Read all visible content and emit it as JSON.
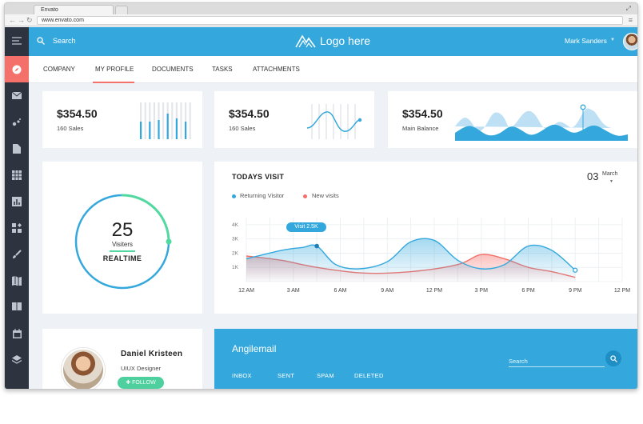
{
  "browser": {
    "tab_title": "Envato",
    "url": "www.envato.com"
  },
  "topbar": {
    "search_label": "Search",
    "logo_text": "Logo here",
    "user_name": "Mark Sanders"
  },
  "sidebar": {
    "icons": [
      "menu-icon",
      "compass-icon",
      "mail-icon",
      "dots-icon",
      "document-icon",
      "grid-icon",
      "bar-chart-icon",
      "widgets-icon",
      "brush-icon",
      "map-icon",
      "book-icon",
      "calendar-icon",
      "layers-icon"
    ],
    "active_index": 1
  },
  "tabs": [
    "COMPANY",
    "MY PROFILE",
    "DOCUMENTS",
    "TASKS",
    "ATTACHMENTS"
  ],
  "active_tab": 1,
  "stats": [
    {
      "value": "$354.50",
      "label": "160 Sales",
      "chart": "bars",
      "bars": [
        0.55,
        0.85,
        0.55,
        0.95,
        0.6,
        0.45,
        0.8,
        0.5,
        0.65,
        0.35,
        0.55,
        0.6
      ]
    },
    {
      "value": "$354.50",
      "label": "160 Sales",
      "chart": "wave"
    },
    {
      "value": "$354.50",
      "label": "Main Balance",
      "chart": "area"
    }
  ],
  "realtime": {
    "count": "25",
    "unit": "Visiters",
    "label": "REALTIME",
    "progress": 0.25
  },
  "visits": {
    "title": "TODAYS VISIT",
    "date_day": "03",
    "date_month": "March",
    "legend": [
      {
        "label": "Returning Visitor",
        "color": "#34a8dd"
      },
      {
        "label": "New visits",
        "color": "#f4706a"
      }
    ],
    "tooltip": "Visit 2.5K"
  },
  "chart_data": {
    "type": "area",
    "y_tick_labels": [
      "4K",
      "3K",
      "2K",
      "1K"
    ],
    "ylim": [
      0,
      4.5
    ],
    "categories": [
      "12 AM",
      "3 AM",
      "6 AM",
      "9 AM",
      "12 PM",
      "3 PM",
      "6 PM",
      "9 PM",
      "12 PM"
    ],
    "series": [
      {
        "name": "Returning Visitor",
        "color": "#34a8dd",
        "x": [
          0,
          0.75,
          1.2,
          1.5,
          1.9,
          2.4,
          3.0,
          3.5,
          4.0,
          4.5,
          5.0,
          5.5,
          6.0,
          6.5,
          7.0
        ],
        "y": [
          1.6,
          2.2,
          2.4,
          2.5,
          1.2,
          0.9,
          1.4,
          2.8,
          2.9,
          1.5,
          0.9,
          1.2,
          2.5,
          2.2,
          0.8
        ]
      },
      {
        "name": "New visits",
        "color": "#f4706a",
        "x": [
          0,
          0.75,
          1.5,
          2.5,
          3.5,
          4.5,
          5.0,
          5.5,
          6.0,
          6.5,
          7.0
        ],
        "y": [
          1.8,
          1.5,
          1.0,
          0.6,
          0.7,
          1.2,
          1.9,
          1.6,
          1.0,
          0.7,
          0.3
        ]
      }
    ],
    "tooltip_point": {
      "x": 1.5,
      "y": 2.5,
      "label": "Visit 2.5K"
    },
    "grid": true
  },
  "profile": {
    "name": "Daniel Kristeen",
    "role": "UIUX Designer",
    "follow_label": "FOLLOW"
  },
  "mail": {
    "title": "Angilemail",
    "tabs": [
      "INBOX",
      "SENT",
      "SPAM",
      "DELETED"
    ],
    "search_placeholder": "Search"
  }
}
